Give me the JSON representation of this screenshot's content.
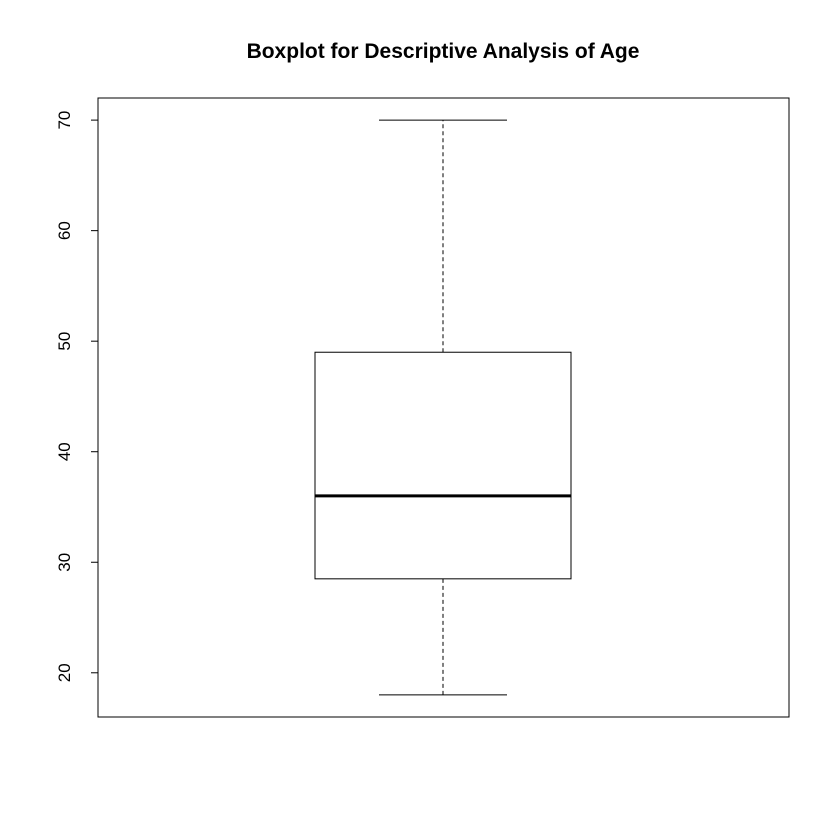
{
  "chart_data": {
    "type": "boxplot",
    "title": "Boxplot for Descriptive Analysis of Age",
    "xlabel": "",
    "ylabel": "",
    "ylim": [
      16,
      72
    ],
    "yticks": [
      20,
      30,
      40,
      50,
      60,
      70
    ],
    "yticklabels": [
      "20",
      "30",
      "40",
      "50",
      "60",
      "70"
    ],
    "grid": false,
    "box": {
      "whisker_low": 18,
      "q1": 28.5,
      "median": 36,
      "q3": 49,
      "whisker_high": 70
    }
  }
}
